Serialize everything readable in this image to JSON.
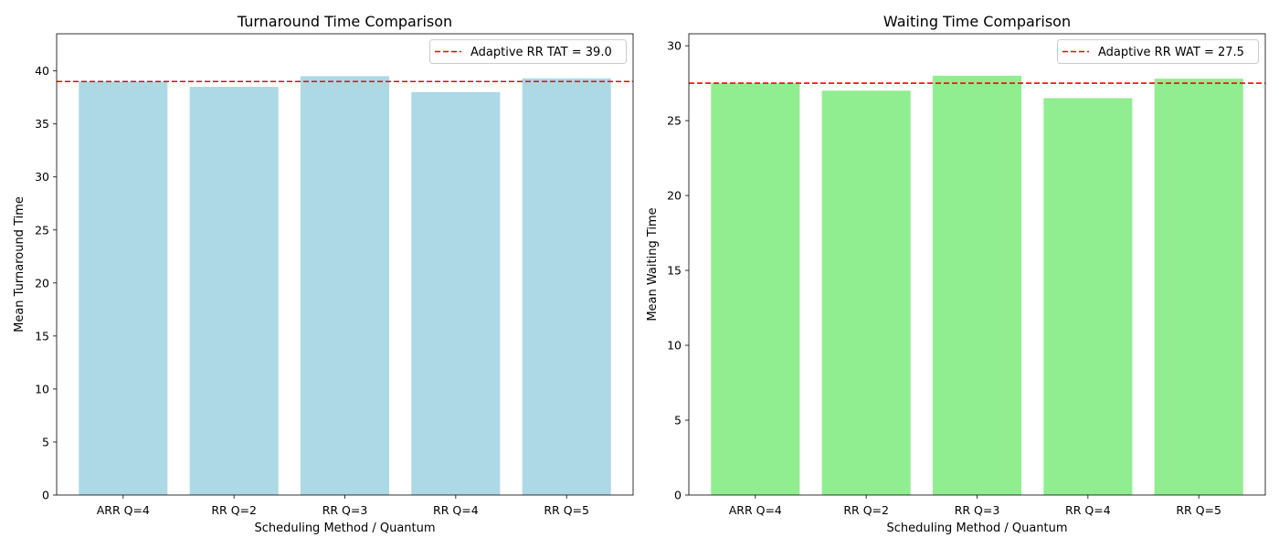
{
  "chart_data": [
    {
      "type": "bar",
      "title": "Turnaround Time Comparison",
      "xlabel": "Scheduling Method / Quantum",
      "ylabel": "Mean Turnaround Time",
      "categories": [
        "ARR Q=4",
        "RR Q=2",
        "RR Q=3",
        "RR Q=4",
        "RR Q=5"
      ],
      "values": [
        39.0,
        38.5,
        39.5,
        38.0,
        39.3
      ],
      "ylim": [
        0,
        43.5
      ],
      "yticks": [
        0,
        5,
        10,
        15,
        20,
        25,
        30,
        35,
        40
      ],
      "bar_color": "#add8e6",
      "reference_line": {
        "value": 39.0,
        "label": "Adaptive RR TAT = 39.0",
        "color": "#ff0000",
        "style": "dashed"
      },
      "legend_position": "top-right",
      "grid": false
    },
    {
      "type": "bar",
      "title": "Waiting Time Comparison",
      "xlabel": "Scheduling Method / Quantum",
      "ylabel": "Mean Waiting Time",
      "categories": [
        "ARR Q=4",
        "RR Q=2",
        "RR Q=3",
        "RR Q=4",
        "RR Q=5"
      ],
      "values": [
        27.5,
        27.0,
        28.0,
        26.5,
        27.8
      ],
      "ylim": [
        0,
        30.8
      ],
      "yticks": [
        0,
        5,
        10,
        15,
        20,
        25,
        30
      ],
      "bar_color": "#90ee90",
      "reference_line": {
        "value": 27.5,
        "label": "Adaptive RR WAT = 27.5",
        "color": "#ff0000",
        "style": "dashed"
      },
      "legend_position": "top-right",
      "grid": false
    }
  ]
}
